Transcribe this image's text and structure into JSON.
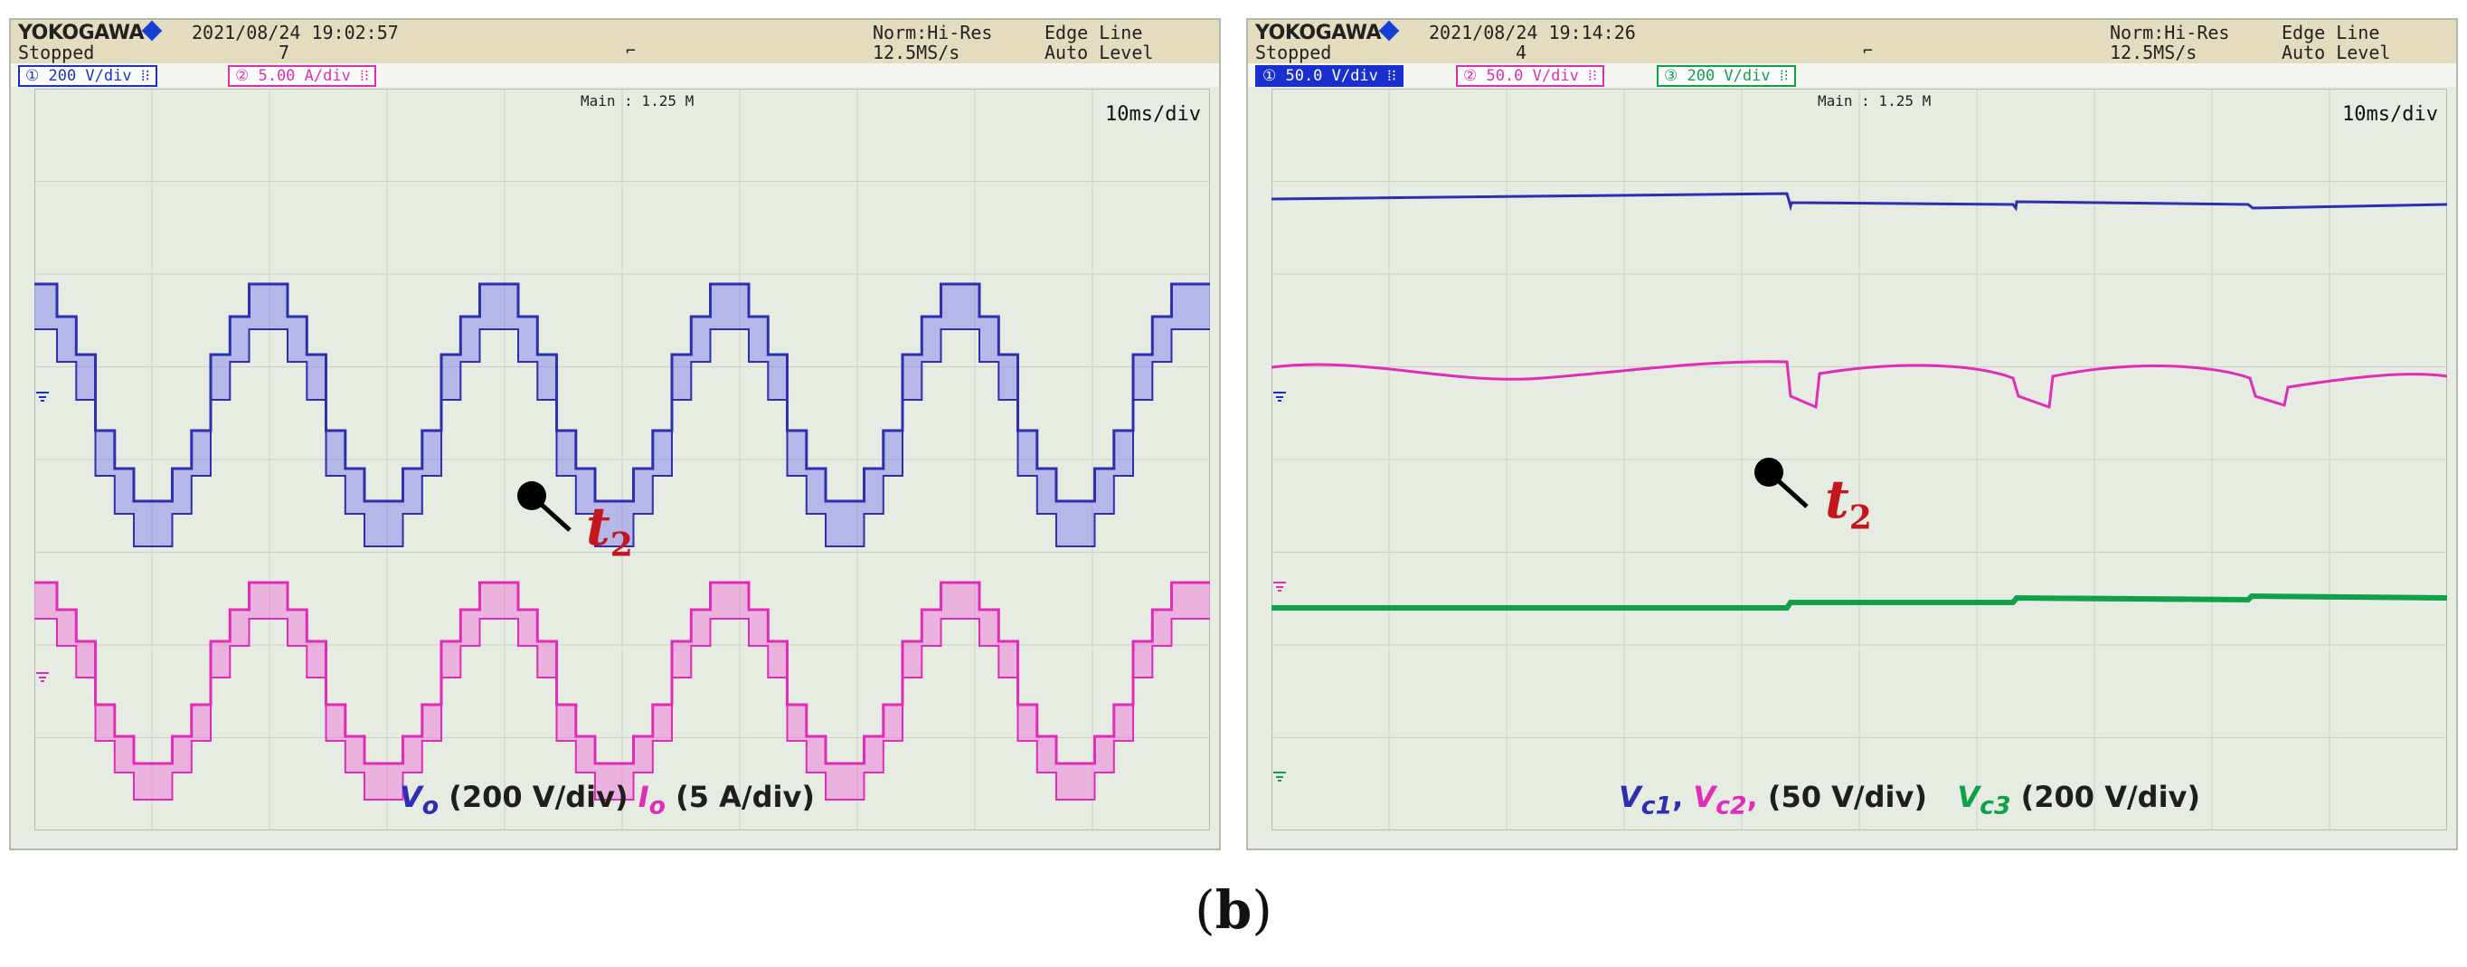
{
  "left": {
    "brand": "YOKOGAWA",
    "date": "2021/08/24  19:02:57",
    "state": "Stopped",
    "count": "7",
    "trigger_mark": "⌐",
    "acq_mode": "Norm:Hi-Res",
    "sample_rate": "12.5MS/s",
    "trigger_type": "Edge Line",
    "trigger_level": "Auto Level",
    "channels": [
      {
        "label": "① 200 V/div ⁞⁝",
        "color": "#1a2fd0"
      },
      {
        "label": "② 5.00 A/div ⁞⁝",
        "color": "#e02cb8"
      }
    ],
    "main_label": "Main : 1.25 M",
    "timebase": "10ms/div",
    "legend": {
      "v_sym": "V",
      "v_sub": "o",
      "v_text": " (200 V/div) ",
      "i_sym": "I",
      "i_sub": "o",
      "i_text": " (5 A/div)"
    }
  },
  "right": {
    "brand": "YOKOGAWA",
    "date": "2021/08/24  19:14:26",
    "state": "Stopped",
    "count": "4",
    "trigger_mark": "⌐",
    "acq_mode": "Norm:Hi-Res",
    "sample_rate": "12.5MS/s",
    "trigger_type": "Edge Line",
    "trigger_level": "Auto Level",
    "channels": [
      {
        "label": "① 50.0 V/div ⁞⁝",
        "color": "#1a2fd0"
      },
      {
        "label": "② 50.0 V/div ⁞⁝",
        "color": "#e02cb8"
      },
      {
        "label": "③ 200 V/div ⁞⁝",
        "color": "#11a04a"
      }
    ],
    "main_label": "Main : 1.25 M",
    "timebase": "10ms/div",
    "legend": {
      "vc1": "V",
      "vc1_sub": "c1",
      "sep1": ", ",
      "vc2": "V",
      "vc2_sub": "c2",
      "sep2": ", ",
      "group1": "(50 V/div)",
      "vc3": "V",
      "vc3_sub": "c3",
      "group2": " (200 V/div)"
    }
  },
  "marker": {
    "symbol": "t",
    "sub": "2"
  },
  "caption": {
    "open": "(",
    "letter": "b",
    "close": ")"
  },
  "colors": {
    "blue": "#2b2fb0",
    "pink": "#e02cb8",
    "green": "#11a04a",
    "screen": "#e6ece2"
  }
}
